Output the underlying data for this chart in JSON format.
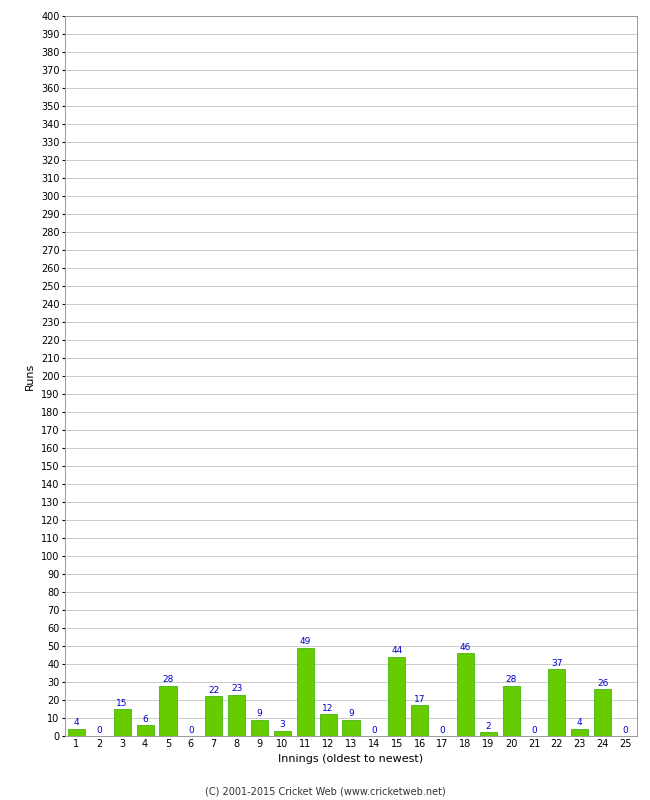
{
  "xlabel": "Innings (oldest to newest)",
  "ylabel": "Runs",
  "categories": [
    1,
    2,
    3,
    4,
    5,
    6,
    7,
    8,
    9,
    10,
    11,
    12,
    13,
    14,
    15,
    16,
    17,
    18,
    19,
    20,
    21,
    22,
    23,
    24,
    25
  ],
  "values": [
    4,
    0,
    15,
    6,
    28,
    0,
    22,
    23,
    9,
    3,
    49,
    12,
    9,
    0,
    44,
    17,
    0,
    46,
    2,
    28,
    0,
    37,
    4,
    26,
    0
  ],
  "bar_color": "#66cc00",
  "bar_edge_color": "#33aa00",
  "label_color": "#0000cc",
  "ylim": [
    0,
    400
  ],
  "ytick_step": 10,
  "grid_color": "#cccccc",
  "background_color": "#ffffff",
  "footer": "(C) 2001-2015 Cricket Web (www.cricketweb.net)",
  "label_fontsize": 6.5,
  "axis_label_fontsize": 8,
  "tick_fontsize": 7,
  "footer_fontsize": 7
}
